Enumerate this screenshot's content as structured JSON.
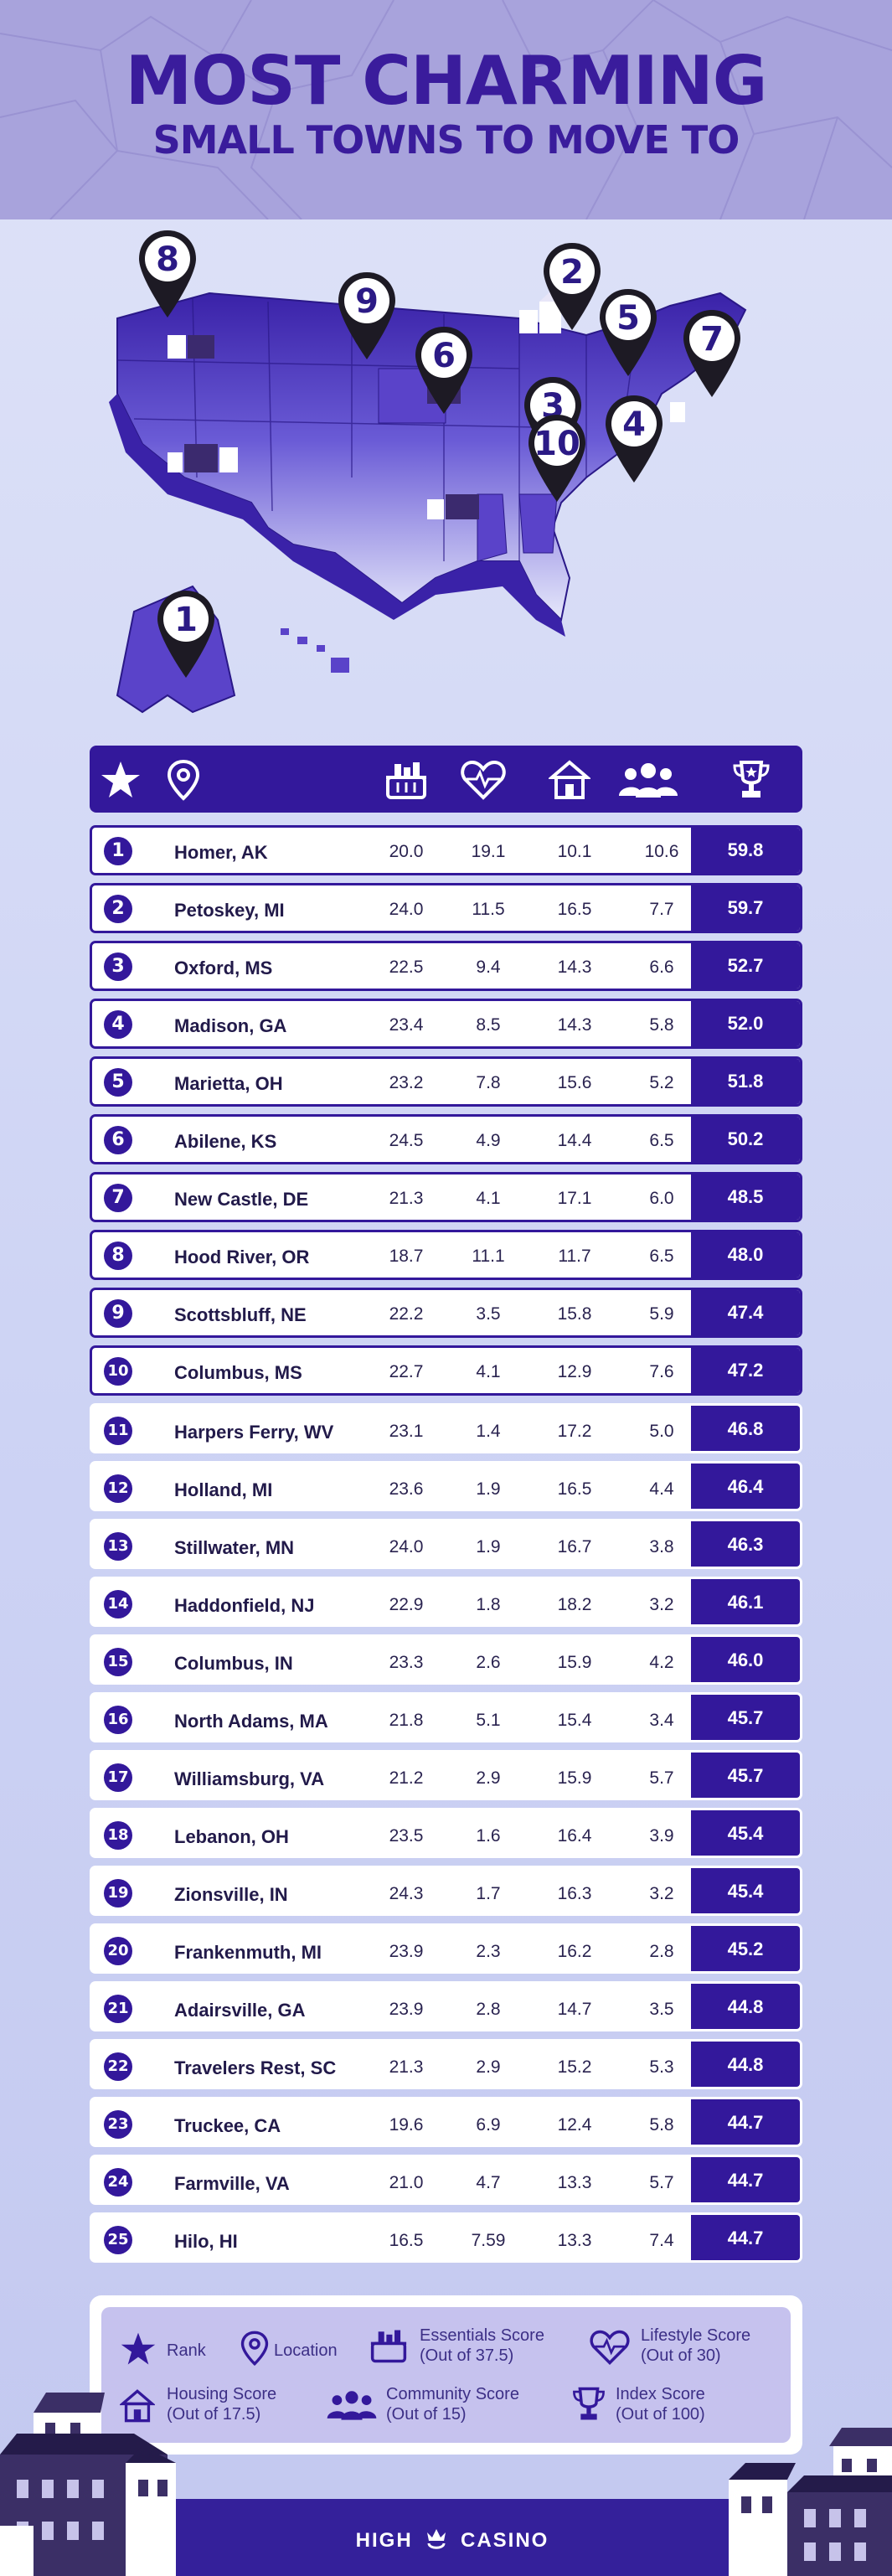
{
  "header": {
    "title_line1": "MOST CHARMING",
    "title_line2": "SMALL TOWNS TO MOVE TO"
  },
  "colors": {
    "primary": "#33189b",
    "accent": "#5a43c9",
    "header_bg": "#a8a3dc",
    "page_bg": "#d3d8f6"
  },
  "table_header_icons": [
    "star-icon",
    "location-pin-icon",
    "basket-icon",
    "heart-pulse-icon",
    "house-icon",
    "people-icon",
    "trophy-icon"
  ],
  "chart_data": {
    "type": "table",
    "title": "Most Charming Small Towns to Move To",
    "columns": [
      "Rank",
      "Location",
      "Essentials Score",
      "Lifestyle Score",
      "Housing Score",
      "Community Score",
      "Index Score"
    ],
    "rows": [
      {
        "rank": "1",
        "location": "Homer, AK",
        "essentials": "20.0",
        "lifestyle": "19.1",
        "housing": "10.1",
        "community": "10.6",
        "index": "59.8"
      },
      {
        "rank": "2",
        "location": "Petoskey, MI",
        "essentials": "24.0",
        "lifestyle": "11.5",
        "housing": "16.5",
        "community": "7.7",
        "index": "59.7"
      },
      {
        "rank": "3",
        "location": "Oxford, MS",
        "essentials": "22.5",
        "lifestyle": "9.4",
        "housing": "14.3",
        "community": "6.6",
        "index": "52.7"
      },
      {
        "rank": "4",
        "location": "Madison, GA",
        "essentials": "23.4",
        "lifestyle": "8.5",
        "housing": "14.3",
        "community": "5.8",
        "index": "52.0"
      },
      {
        "rank": "5",
        "location": "Marietta, OH",
        "essentials": "23.2",
        "lifestyle": "7.8",
        "housing": "15.6",
        "community": "5.2",
        "index": "51.8"
      },
      {
        "rank": "6",
        "location": "Abilene, KS",
        "essentials": "24.5",
        "lifestyle": "4.9",
        "housing": "14.4",
        "community": "6.5",
        "index": "50.2"
      },
      {
        "rank": "7",
        "location": "New Castle, DE",
        "essentials": "21.3",
        "lifestyle": "4.1",
        "housing": "17.1",
        "community": "6.0",
        "index": "48.5"
      },
      {
        "rank": "8",
        "location": "Hood River, OR",
        "essentials": "18.7",
        "lifestyle": "11.1",
        "housing": "11.7",
        "community": "6.5",
        "index": "48.0"
      },
      {
        "rank": "9",
        "location": "Scottsbluff, NE",
        "essentials": "22.2",
        "lifestyle": "3.5",
        "housing": "15.8",
        "community": "5.9",
        "index": "47.4"
      },
      {
        "rank": "10",
        "location": "Columbus, MS",
        "essentials": "22.7",
        "lifestyle": "4.1",
        "housing": "12.9",
        "community": "7.6",
        "index": "47.2"
      },
      {
        "rank": "11",
        "location": "Harpers Ferry, WV",
        "essentials": "23.1",
        "lifestyle": "1.4",
        "housing": "17.2",
        "community": "5.0",
        "index": "46.8"
      },
      {
        "rank": "12",
        "location": "Holland, MI",
        "essentials": "23.6",
        "lifestyle": "1.9",
        "housing": "16.5",
        "community": "4.4",
        "index": "46.4"
      },
      {
        "rank": "13",
        "location": "Stillwater, MN",
        "essentials": "24.0",
        "lifestyle": "1.9",
        "housing": "16.7",
        "community": "3.8",
        "index": "46.3"
      },
      {
        "rank": "14",
        "location": "Haddonfield, NJ",
        "essentials": "22.9",
        "lifestyle": "1.8",
        "housing": "18.2",
        "community": "3.2",
        "index": "46.1"
      },
      {
        "rank": "15",
        "location": "Columbus, IN",
        "essentials": "23.3",
        "lifestyle": "2.6",
        "housing": "15.9",
        "community": "4.2",
        "index": "46.0"
      },
      {
        "rank": "16",
        "location": "North Adams, MA",
        "essentials": "21.8",
        "lifestyle": "5.1",
        "housing": "15.4",
        "community": "3.4",
        "index": "45.7"
      },
      {
        "rank": "17",
        "location": "Williamsburg, VA",
        "essentials": "21.2",
        "lifestyle": "2.9",
        "housing": "15.9",
        "community": "5.7",
        "index": "45.7"
      },
      {
        "rank": "18",
        "location": "Lebanon, OH",
        "essentials": "23.5",
        "lifestyle": "1.6",
        "housing": "16.4",
        "community": "3.9",
        "index": "45.4"
      },
      {
        "rank": "19",
        "location": "Zionsville, IN",
        "essentials": "24.3",
        "lifestyle": "1.7",
        "housing": "16.3",
        "community": "3.2",
        "index": "45.4"
      },
      {
        "rank": "20",
        "location": "Frankenmuth, MI",
        "essentials": "23.9",
        "lifestyle": "2.3",
        "housing": "16.2",
        "community": "2.8",
        "index": "45.2"
      },
      {
        "rank": "21",
        "location": "Adairsville, GA",
        "essentials": "23.9",
        "lifestyle": "2.8",
        "housing": "14.7",
        "community": "3.5",
        "index": "44.8"
      },
      {
        "rank": "22",
        "location": "Travelers Rest, SC",
        "essentials": "21.3",
        "lifestyle": "2.9",
        "housing": "15.2",
        "community": "5.3",
        "index": "44.8"
      },
      {
        "rank": "23",
        "location": "Truckee, CA",
        "essentials": "19.6",
        "lifestyle": "6.9",
        "housing": "12.4",
        "community": "5.8",
        "index": "44.7"
      },
      {
        "rank": "24",
        "location": "Farmville, VA",
        "essentials": "21.0",
        "lifestyle": "4.7",
        "housing": "13.3",
        "community": "5.7",
        "index": "44.7"
      },
      {
        "rank": "25",
        "location": "Hilo, HI",
        "essentials": "16.5",
        "lifestyle": "7.59",
        "housing": "13.3",
        "community": "7.4",
        "index": "44.7"
      }
    ]
  },
  "legend": {
    "rank": "Rank",
    "location": "Location",
    "essentials": "Essentials Score",
    "essentials_max": "(Out of 37.5)",
    "lifestyle": "Lifestyle Score",
    "lifestyle_max": "(Out of 30)",
    "housing": "Housing Score",
    "housing_max": "(Out of 17.5)",
    "community": "Community Score",
    "community_max": "(Out of 15)",
    "index": "Index Score",
    "index_max": "(Out of 100)"
  },
  "map_pins": [
    "1",
    "2",
    "3",
    "4",
    "5",
    "6",
    "7",
    "8",
    "9",
    "10"
  ],
  "footer": {
    "brand_left": "HIGH",
    "brand_right": "CASINO"
  }
}
